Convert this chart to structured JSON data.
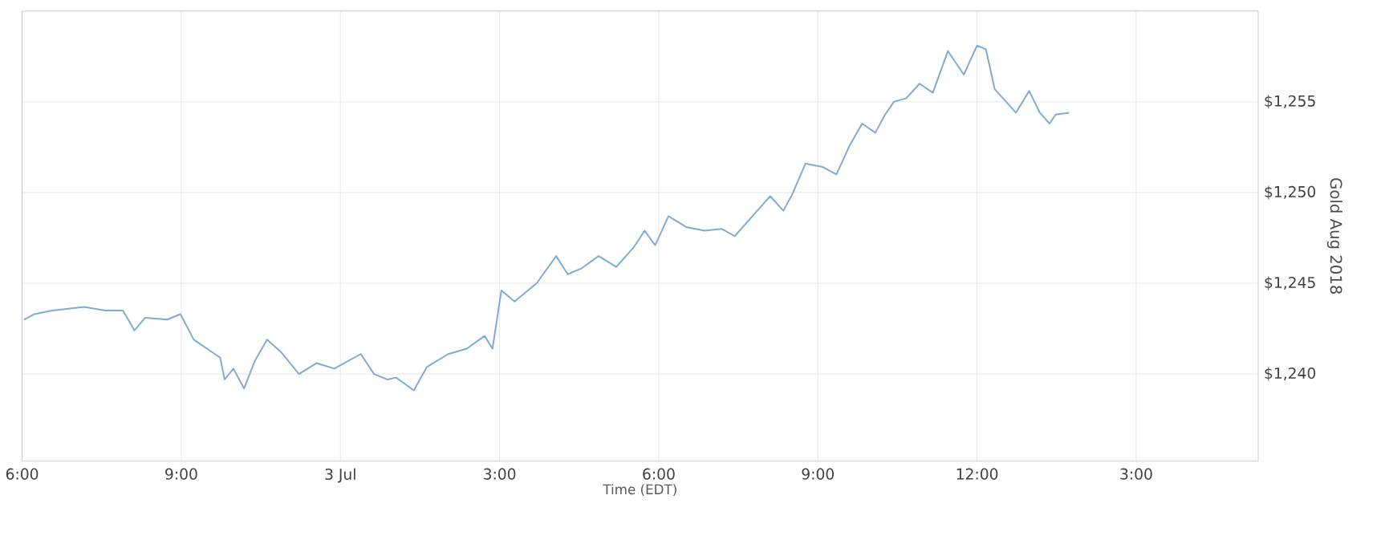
{
  "chart_data": {
    "type": "line",
    "xlabel": "Time (EDT)",
    "ylabel": "Gold Aug 2018",
    "x": [
      "2018-07-02T18:02",
      "2018-07-02T18:14",
      "2018-07-02T18:34",
      "2018-07-02T19:10",
      "2018-07-02T19:34",
      "2018-07-02T19:54",
      "2018-07-02T20:07",
      "2018-07-02T20:19",
      "2018-07-02T20:44",
      "2018-07-02T20:59",
      "2018-07-02T21:14",
      "2018-07-02T21:29",
      "2018-07-02T21:44",
      "2018-07-02T21:49",
      "2018-07-02T21:59",
      "2018-07-02T22:11",
      "2018-07-02T22:23",
      "2018-07-02T22:37",
      "2018-07-02T22:53",
      "2018-07-02T23:13",
      "2018-07-02T23:33",
      "2018-07-02T23:53",
      "2018-07-03T00:23",
      "2018-07-03T00:38",
      "2018-07-03T00:53",
      "2018-07-03T01:03",
      "2018-07-03T01:23",
      "2018-07-03T01:38",
      "2018-07-03T02:02",
      "2018-07-03T02:23",
      "2018-07-03T02:43",
      "2018-07-03T02:52",
      "2018-07-03T03:02",
      "2018-07-03T03:17",
      "2018-07-03T03:32",
      "2018-07-03T03:42",
      "2018-07-03T04:04",
      "2018-07-03T04:17",
      "2018-07-03T04:32",
      "2018-07-03T04:52",
      "2018-07-03T05:12",
      "2018-07-03T05:32",
      "2018-07-03T05:44",
      "2018-07-03T05:56",
      "2018-07-03T06:11",
      "2018-07-03T06:31",
      "2018-07-03T06:52",
      "2018-07-03T07:11",
      "2018-07-03T07:26",
      "2018-07-03T07:46",
      "2018-07-03T08:06",
      "2018-07-03T08:21",
      "2018-07-03T08:31",
      "2018-07-03T08:46",
      "2018-07-03T09:06",
      "2018-07-03T09:21",
      "2018-07-03T09:36",
      "2018-07-03T09:50",
      "2018-07-03T10:05",
      "2018-07-03T10:16",
      "2018-07-03T10:26",
      "2018-07-03T10:40",
      "2018-07-03T10:55",
      "2018-07-03T11:10",
      "2018-07-03T11:27",
      "2018-07-03T11:45",
      "2018-07-03T12:00",
      "2018-07-03T12:10",
      "2018-07-03T12:20",
      "2018-07-03T12:44",
      "2018-07-03T12:59",
      "2018-07-03T13:11",
      "2018-07-03T13:22",
      "2018-07-03T13:29",
      "2018-07-03T13:44"
    ],
    "series": [
      {
        "color": "#7eaad8",
        "values": [
          1243.0,
          1243.3,
          1243.5,
          1243.7,
          1243.5,
          1243.5,
          1242.4,
          1243.1,
          1243.0,
          1243.3,
          1241.9,
          1241.4,
          1240.9,
          1239.7,
          1240.3,
          1239.2,
          1240.7,
          1241.9,
          1241.2,
          1240.0,
          1240.6,
          1240.3,
          1241.1,
          1240.0,
          1239.7,
          1239.8,
          1239.1,
          1240.4,
          1241.1,
          1241.4,
          1242.1,
          1241.4,
          1244.6,
          1244.0,
          1244.6,
          1245.0,
          1246.5,
          1245.5,
          1245.8,
          1246.5,
          1245.9,
          1247.0,
          1247.9,
          1247.1,
          1248.7,
          1248.1,
          1247.9,
          1248.0,
          1247.6,
          1248.7,
          1249.8,
          1249.0,
          1249.9,
          1251.6,
          1251.4,
          1251.0,
          1252.6,
          1253.8,
          1253.3,
          1254.3,
          1255.0,
          1255.2,
          1256.0,
          1255.5,
          1257.8,
          1256.5,
          1258.1,
          1257.9,
          1255.7,
          1254.4,
          1255.6,
          1254.4,
          1253.8,
          1254.3,
          1254.4
        ]
      }
    ],
    "xlim": [
      "2018-07-02T18:00",
      "2018-07-03T17:18"
    ],
    "xticks": [
      {
        "value": "2018-07-02T18:00",
        "label": "6:00"
      },
      {
        "value": "2018-07-02T21:00",
        "label": "9:00"
      },
      {
        "value": "2018-07-03T00:00",
        "label": "3 Jul"
      },
      {
        "value": "2018-07-03T03:00",
        "label": "3:00"
      },
      {
        "value": "2018-07-03T06:00",
        "label": "6:00"
      },
      {
        "value": "2018-07-03T09:00",
        "label": "9:00"
      },
      {
        "value": "2018-07-03T12:00",
        "label": "12:00"
      },
      {
        "value": "2018-07-03T15:00",
        "label": "3:00"
      }
    ],
    "ylim": [
      1235.2,
      1260
    ],
    "yticks": [
      {
        "value": 1240,
        "label": "$1,240"
      },
      {
        "value": 1245,
        "label": "$1,245"
      },
      {
        "value": 1250,
        "label": "$1,250"
      },
      {
        "value": 1255,
        "label": "$1,255"
      }
    ],
    "grid": true
  }
}
